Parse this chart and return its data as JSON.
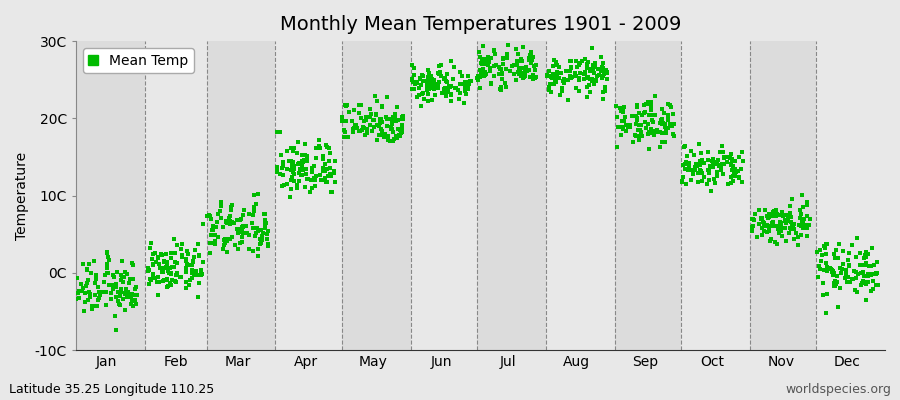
{
  "title": "Monthly Mean Temperatures 1901 - 2009",
  "ylabel": "Temperature",
  "bottom_left": "Latitude 35.25 Longitude 110.25",
  "bottom_right": "worldspecies.org",
  "legend_label": "Mean Temp",
  "ylim": [
    -10,
    30
  ],
  "yticks": [
    -10,
    0,
    10,
    20,
    30
  ],
  "ytick_labels": [
    "-10C",
    "0C",
    "10C",
    "20C",
    "30C"
  ],
  "months": [
    "Jan",
    "Feb",
    "Mar",
    "Apr",
    "May",
    "Jun",
    "Jul",
    "Aug",
    "Sep",
    "Oct",
    "Nov",
    "Dec"
  ],
  "month_days": [
    15,
    46,
    74,
    105,
    135,
    166,
    196,
    227,
    258,
    288,
    319,
    349
  ],
  "month_mean_temps": [
    -2.0,
    0.5,
    5.5,
    13.5,
    19.5,
    24.5,
    26.5,
    25.5,
    19.5,
    13.5,
    6.5,
    0.5
  ],
  "month_std_temps": [
    1.8,
    1.5,
    1.8,
    1.8,
    1.4,
    1.2,
    1.1,
    1.2,
    1.4,
    1.4,
    1.4,
    1.8
  ],
  "n_years": 109,
  "marker_color": "#00BB00",
  "marker": "s",
  "marker_size": 2.5,
  "bg_color": "#E8E8E8",
  "plot_bg_color": "#E8E8E8",
  "band_colors": [
    "#DCDCDC",
    "#E8E8E8"
  ],
  "title_fontsize": 14,
  "axis_fontsize": 10,
  "tick_fontsize": 10,
  "annotation_fontsize": 9
}
